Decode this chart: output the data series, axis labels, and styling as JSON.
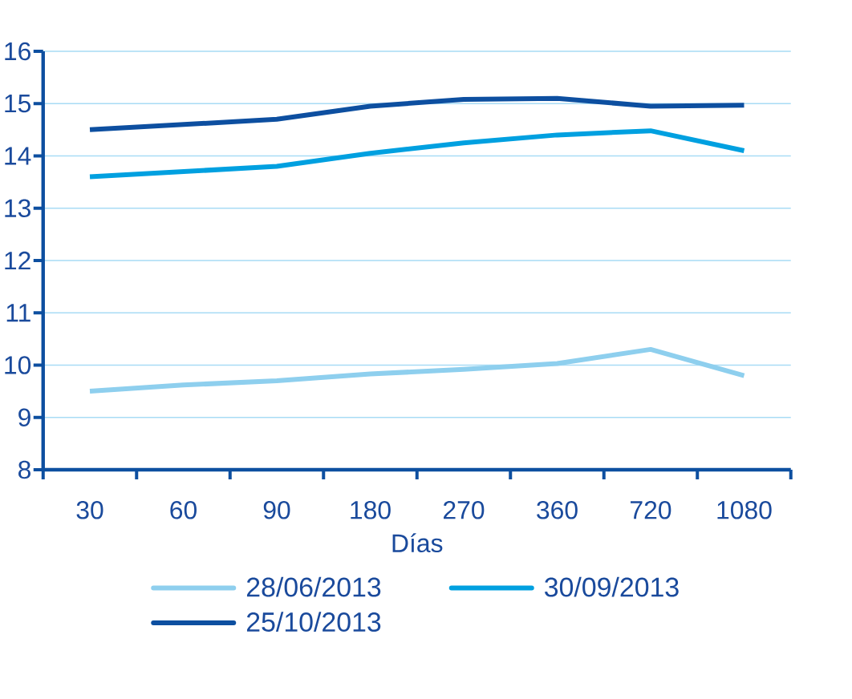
{
  "chart_data": {
    "type": "line",
    "xlabel": "Días",
    "categories": [
      "30",
      "60",
      "90",
      "180",
      "270",
      "360",
      "720",
      "1080"
    ],
    "series": [
      {
        "name": "28/06/2013",
        "color": "#8ecfee",
        "values": [
          9.5,
          9.62,
          9.7,
          9.83,
          9.92,
          10.03,
          10.3,
          9.8
        ]
      },
      {
        "name": "30/09/2013",
        "color": "#00a0e0",
        "values": [
          13.6,
          13.7,
          13.8,
          14.05,
          14.25,
          14.4,
          14.48,
          14.1
        ]
      },
      {
        "name": "25/10/2013",
        "color": "#0d4fa0",
        "values": [
          14.5,
          14.6,
          14.7,
          14.95,
          15.08,
          15.1,
          14.95,
          14.97
        ]
      }
    ],
    "ylim": [
      8,
      16
    ],
    "yticks": [
      8,
      9,
      10,
      11,
      12,
      13,
      14,
      15,
      16
    ],
    "grid": "y",
    "legend": "bottom"
  }
}
